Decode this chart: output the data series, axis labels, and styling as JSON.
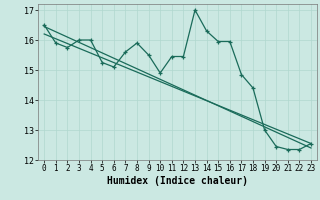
{
  "xlabel": "Humidex (Indice chaleur)",
  "xlim": [
    -0.5,
    23.5
  ],
  "ylim": [
    12,
    17.2
  ],
  "yticks": [
    12,
    13,
    14,
    15,
    16,
    17
  ],
  "xtick_vals": [
    0,
    1,
    2,
    3,
    4,
    5,
    6,
    7,
    8,
    9,
    10,
    11,
    12,
    13,
    14,
    15,
    16,
    17,
    18,
    19,
    20,
    21,
    22,
    23
  ],
  "xtick_labels": [
    "0",
    "1",
    "2",
    "3",
    "4",
    "5",
    "6",
    "7",
    "8",
    "9",
    "10",
    "11",
    "12",
    "13",
    "14",
    "15",
    "16",
    "17",
    "18",
    "19",
    "20",
    "21",
    "22",
    "23"
  ],
  "bg_color": "#cbe8e2",
  "grid_color": "#b0d8cf",
  "line_color": "#1a6b5a",
  "line1_x": [
    0,
    1,
    2,
    3,
    4,
    5,
    6,
    7,
    8,
    9,
    10,
    11,
    12,
    13,
    14,
    15,
    16,
    17,
    18,
    19,
    20,
    21,
    22,
    23
  ],
  "line1_y": [
    16.5,
    15.9,
    15.75,
    16.0,
    16.0,
    15.25,
    15.1,
    15.6,
    15.9,
    15.5,
    14.9,
    15.45,
    15.45,
    17.0,
    16.3,
    15.95,
    15.95,
    14.85,
    14.4,
    13.0,
    12.45,
    12.35,
    12.35,
    12.55
  ],
  "line2_x": [
    0,
    23
  ],
  "line2_y": [
    16.45,
    12.4
  ],
  "line3_x": [
    0,
    23
  ],
  "line3_y": [
    16.2,
    12.55
  ]
}
